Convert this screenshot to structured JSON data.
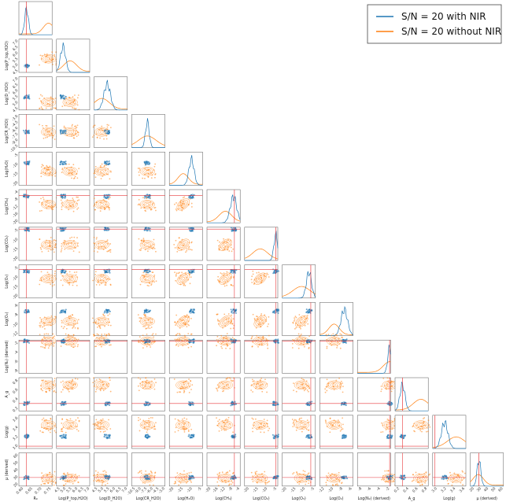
{
  "chart_data": {
    "type": "corner",
    "parameters": [
      {
        "key": "R0",
        "label": "R₀",
        "ticks": [
          "0.60",
          "0.65",
          "0.70",
          "0.75"
        ],
        "truth": 0.625,
        "blue": 0.6265,
        "orange": 0.7455
      },
      {
        "key": "P_top",
        "label": "Log(P_top,H2O)",
        "ticks": [
          "4.5",
          "5.0",
          "5.5",
          "6.0",
          "6.5",
          "7.0"
        ],
        "truth": null,
        "blue": 4.9,
        "orange": 5.5
      },
      {
        "key": "D_H2O",
        "label": "Log(D_H2O)",
        "ticks": [
          "4.5",
          "5.0",
          "5.5",
          "6.0",
          "6.5",
          "7.0"
        ],
        "truth": null,
        "blue": 5.45,
        "orange": 5.0
      },
      {
        "key": "CR_H2O",
        "label": "Log(CR_H2O)",
        "ticks": [
          "-10.5",
          "-9.0",
          "-7.5",
          "-6.0",
          "-4.5",
          "-3.0"
        ],
        "truth": null,
        "blue": -7.0,
        "orange": -7.0
      },
      {
        "key": "H2O",
        "label": "Log(H₂O)",
        "ticks": [
          "-20",
          "-15",
          "-10",
          "-5"
        ],
        "truth": null,
        "blue": -9.5,
        "orange": -14.0
      },
      {
        "key": "CH4",
        "label": "Log(CH₄)",
        "ticks": [
          "-20",
          "-16",
          "-12",
          "-8",
          "-4"
        ],
        "truth": -6.0,
        "blue": -6.5,
        "orange": -11.0
      },
      {
        "key": "CO2",
        "label": "Log(CO₂)",
        "ticks": [
          "-20",
          "-15",
          "-10",
          "-5"
        ],
        "truth": -4.5,
        "blue": -4.6,
        "orange": -13.0
      },
      {
        "key": "O3",
        "label": "Log(O₃)",
        "ticks": [
          "-20",
          "-15",
          "-10",
          "-5"
        ],
        "truth": -6.0,
        "blue": -7.0,
        "orange": -11.0
      },
      {
        "key": "O2",
        "label": "Log(O₂)",
        "ticks": [
          "-12",
          "-10",
          "-8",
          "-6"
        ],
        "truth": null,
        "blue": -7.3,
        "orange": -9.5
      },
      {
        "key": "N2",
        "label": "Log(N₂) (derived)",
        "ticks": [
          "-8",
          "-6",
          "-4",
          "-2"
        ],
        "truth": -0.1,
        "blue": -0.15,
        "orange": -0.1
      },
      {
        "key": "Ag",
        "label": "A_g",
        "ticks": [
          "0.2",
          "0.4",
          "0.6",
          "0.8"
        ],
        "truth": 0.3,
        "blue": 0.3,
        "orange": 0.7
      },
      {
        "key": "logg",
        "label": "Log(g)",
        "ticks": [
          "3.0",
          "3.2",
          "3.4",
          "3.6"
        ],
        "truth": 2.99,
        "blue": 3.2,
        "orange": 3.45
      },
      {
        "key": "mu",
        "label": "μ (derived)",
        "ticks": [
          "20",
          "30",
          "40",
          "50",
          "60"
        ],
        "truth": 28.9,
        "blue": 29.0,
        "orange": 28.0
      }
    ],
    "series": [
      {
        "name": "S/N = 20 with NIR",
        "color": "#1f77b4"
      },
      {
        "name": "S/N = 20 without NIR",
        "color": "#ff7f0e"
      }
    ],
    "truth_color": "#e8393c",
    "legend": {
      "position": "top-right"
    }
  }
}
